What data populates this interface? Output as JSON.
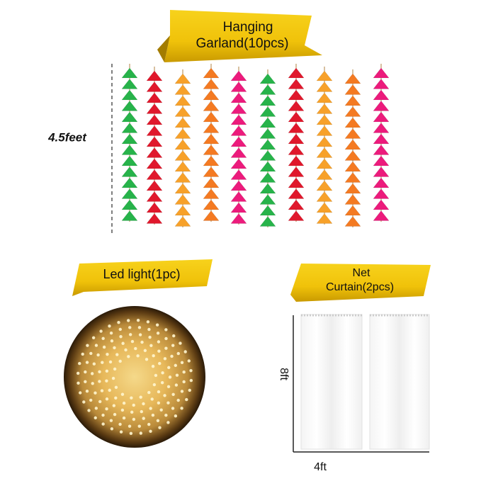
{
  "garland_banner": {
    "line1": "Hanging",
    "line2": "Garland(10pcs)"
  },
  "garland_height": "4.5feet",
  "led_banner": "Led light(1pc)",
  "curtain_banner": {
    "line1": "Net",
    "line2": "Curtain(2pcs)"
  },
  "curtain_height": "8ft",
  "curtain_width": "4ft"
}
